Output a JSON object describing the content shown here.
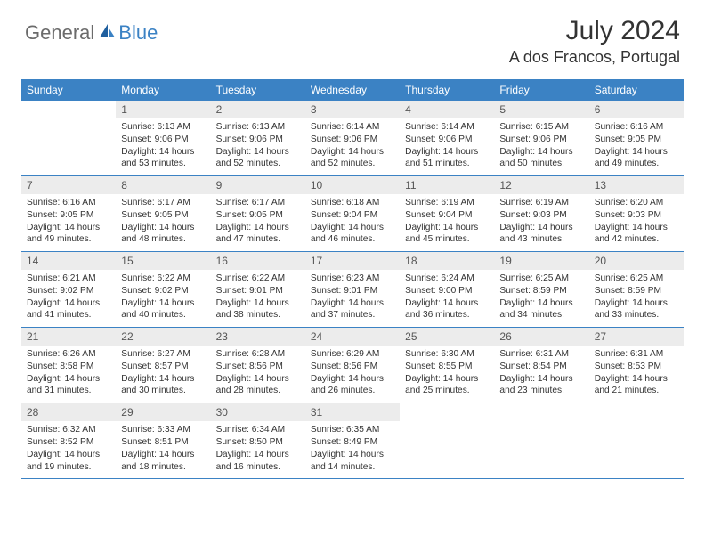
{
  "logo": {
    "part1": "General",
    "part2": "Blue"
  },
  "title": "July 2024",
  "location": "A dos Francos, Portugal",
  "colors": {
    "header_bg": "#3b82c4",
    "header_text": "#ffffff",
    "daynum_bg": "#ececec",
    "daynum_text": "#555555",
    "body_text": "#333333",
    "divider": "#3b82c4",
    "logo_gray": "#6b6b6b",
    "logo_blue": "#3b82c4"
  },
  "day_names": [
    "Sunday",
    "Monday",
    "Tuesday",
    "Wednesday",
    "Thursday",
    "Friday",
    "Saturday"
  ],
  "weeks": [
    [
      null,
      {
        "n": "1",
        "sr": "Sunrise: 6:13 AM",
        "ss": "Sunset: 9:06 PM",
        "d1": "Daylight: 14 hours",
        "d2": "and 53 minutes."
      },
      {
        "n": "2",
        "sr": "Sunrise: 6:13 AM",
        "ss": "Sunset: 9:06 PM",
        "d1": "Daylight: 14 hours",
        "d2": "and 52 minutes."
      },
      {
        "n": "3",
        "sr": "Sunrise: 6:14 AM",
        "ss": "Sunset: 9:06 PM",
        "d1": "Daylight: 14 hours",
        "d2": "and 52 minutes."
      },
      {
        "n": "4",
        "sr": "Sunrise: 6:14 AM",
        "ss": "Sunset: 9:06 PM",
        "d1": "Daylight: 14 hours",
        "d2": "and 51 minutes."
      },
      {
        "n": "5",
        "sr": "Sunrise: 6:15 AM",
        "ss": "Sunset: 9:06 PM",
        "d1": "Daylight: 14 hours",
        "d2": "and 50 minutes."
      },
      {
        "n": "6",
        "sr": "Sunrise: 6:16 AM",
        "ss": "Sunset: 9:05 PM",
        "d1": "Daylight: 14 hours",
        "d2": "and 49 minutes."
      }
    ],
    [
      {
        "n": "7",
        "sr": "Sunrise: 6:16 AM",
        "ss": "Sunset: 9:05 PM",
        "d1": "Daylight: 14 hours",
        "d2": "and 49 minutes."
      },
      {
        "n": "8",
        "sr": "Sunrise: 6:17 AM",
        "ss": "Sunset: 9:05 PM",
        "d1": "Daylight: 14 hours",
        "d2": "and 48 minutes."
      },
      {
        "n": "9",
        "sr": "Sunrise: 6:17 AM",
        "ss": "Sunset: 9:05 PM",
        "d1": "Daylight: 14 hours",
        "d2": "and 47 minutes."
      },
      {
        "n": "10",
        "sr": "Sunrise: 6:18 AM",
        "ss": "Sunset: 9:04 PM",
        "d1": "Daylight: 14 hours",
        "d2": "and 46 minutes."
      },
      {
        "n": "11",
        "sr": "Sunrise: 6:19 AM",
        "ss": "Sunset: 9:04 PM",
        "d1": "Daylight: 14 hours",
        "d2": "and 45 minutes."
      },
      {
        "n": "12",
        "sr": "Sunrise: 6:19 AM",
        "ss": "Sunset: 9:03 PM",
        "d1": "Daylight: 14 hours",
        "d2": "and 43 minutes."
      },
      {
        "n": "13",
        "sr": "Sunrise: 6:20 AM",
        "ss": "Sunset: 9:03 PM",
        "d1": "Daylight: 14 hours",
        "d2": "and 42 minutes."
      }
    ],
    [
      {
        "n": "14",
        "sr": "Sunrise: 6:21 AM",
        "ss": "Sunset: 9:02 PM",
        "d1": "Daylight: 14 hours",
        "d2": "and 41 minutes."
      },
      {
        "n": "15",
        "sr": "Sunrise: 6:22 AM",
        "ss": "Sunset: 9:02 PM",
        "d1": "Daylight: 14 hours",
        "d2": "and 40 minutes."
      },
      {
        "n": "16",
        "sr": "Sunrise: 6:22 AM",
        "ss": "Sunset: 9:01 PM",
        "d1": "Daylight: 14 hours",
        "d2": "and 38 minutes."
      },
      {
        "n": "17",
        "sr": "Sunrise: 6:23 AM",
        "ss": "Sunset: 9:01 PM",
        "d1": "Daylight: 14 hours",
        "d2": "and 37 minutes."
      },
      {
        "n": "18",
        "sr": "Sunrise: 6:24 AM",
        "ss": "Sunset: 9:00 PM",
        "d1": "Daylight: 14 hours",
        "d2": "and 36 minutes."
      },
      {
        "n": "19",
        "sr": "Sunrise: 6:25 AM",
        "ss": "Sunset: 8:59 PM",
        "d1": "Daylight: 14 hours",
        "d2": "and 34 minutes."
      },
      {
        "n": "20",
        "sr": "Sunrise: 6:25 AM",
        "ss": "Sunset: 8:59 PM",
        "d1": "Daylight: 14 hours",
        "d2": "and 33 minutes."
      }
    ],
    [
      {
        "n": "21",
        "sr": "Sunrise: 6:26 AM",
        "ss": "Sunset: 8:58 PM",
        "d1": "Daylight: 14 hours",
        "d2": "and 31 minutes."
      },
      {
        "n": "22",
        "sr": "Sunrise: 6:27 AM",
        "ss": "Sunset: 8:57 PM",
        "d1": "Daylight: 14 hours",
        "d2": "and 30 minutes."
      },
      {
        "n": "23",
        "sr": "Sunrise: 6:28 AM",
        "ss": "Sunset: 8:56 PM",
        "d1": "Daylight: 14 hours",
        "d2": "and 28 minutes."
      },
      {
        "n": "24",
        "sr": "Sunrise: 6:29 AM",
        "ss": "Sunset: 8:56 PM",
        "d1": "Daylight: 14 hours",
        "d2": "and 26 minutes."
      },
      {
        "n": "25",
        "sr": "Sunrise: 6:30 AM",
        "ss": "Sunset: 8:55 PM",
        "d1": "Daylight: 14 hours",
        "d2": "and 25 minutes."
      },
      {
        "n": "26",
        "sr": "Sunrise: 6:31 AM",
        "ss": "Sunset: 8:54 PM",
        "d1": "Daylight: 14 hours",
        "d2": "and 23 minutes."
      },
      {
        "n": "27",
        "sr": "Sunrise: 6:31 AM",
        "ss": "Sunset: 8:53 PM",
        "d1": "Daylight: 14 hours",
        "d2": "and 21 minutes."
      }
    ],
    [
      {
        "n": "28",
        "sr": "Sunrise: 6:32 AM",
        "ss": "Sunset: 8:52 PM",
        "d1": "Daylight: 14 hours",
        "d2": "and 19 minutes."
      },
      {
        "n": "29",
        "sr": "Sunrise: 6:33 AM",
        "ss": "Sunset: 8:51 PM",
        "d1": "Daylight: 14 hours",
        "d2": "and 18 minutes."
      },
      {
        "n": "30",
        "sr": "Sunrise: 6:34 AM",
        "ss": "Sunset: 8:50 PM",
        "d1": "Daylight: 14 hours",
        "d2": "and 16 minutes."
      },
      {
        "n": "31",
        "sr": "Sunrise: 6:35 AM",
        "ss": "Sunset: 8:49 PM",
        "d1": "Daylight: 14 hours",
        "d2": "and 14 minutes."
      },
      null,
      null,
      null
    ]
  ]
}
